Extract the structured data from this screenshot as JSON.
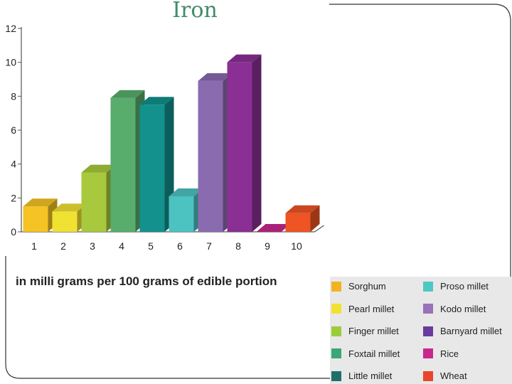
{
  "chart_data": {
    "type": "bar",
    "title": "Iron",
    "xlabel": "",
    "ylabel": "in milli grams per 100 grams of edible portion",
    "categories": [
      "1",
      "2",
      "3",
      "4",
      "5",
      "6",
      "7",
      "8",
      "9",
      "10"
    ],
    "values": [
      1.5,
      1.2,
      3.5,
      7.9,
      7.5,
      2.1,
      8.9,
      10.0,
      0.0,
      1.1
    ],
    "ylim": [
      0,
      12
    ],
    "yticks": [
      "0",
      "2",
      "4",
      "6",
      "8",
      "10",
      "12"
    ],
    "grid": false,
    "legend_position": "bottom-right",
    "legend": [
      {
        "label": "Sorghum",
        "color": "#f2b320"
      },
      {
        "label": "Pearl millet",
        "color": "#f3e130"
      },
      {
        "label": "Finger millet",
        "color": "#9ccb3c"
      },
      {
        "label": "Foxtail millet",
        "color": "#3aa67a"
      },
      {
        "label": "Little millet",
        "color": "#1f6f6b"
      },
      {
        "label": "Proso millet",
        "color": "#4fc7c3"
      },
      {
        "label": "Kodo millet",
        "color": "#9a72b7"
      },
      {
        "label": "Barnyard millet",
        "color": "#6a3aa0"
      },
      {
        "label": "Rice",
        "color": "#c8278f"
      },
      {
        "label": "Wheat",
        "color": "#e8452a"
      }
    ],
    "bar_colors": [
      "#f5c323",
      "#f1e132",
      "#a8c93d",
      "#58ad6c",
      "#12918d",
      "#4cc2c1",
      "#8a6bb0",
      "#8b2f95",
      "#c8278f",
      "#ee5424"
    ]
  }
}
